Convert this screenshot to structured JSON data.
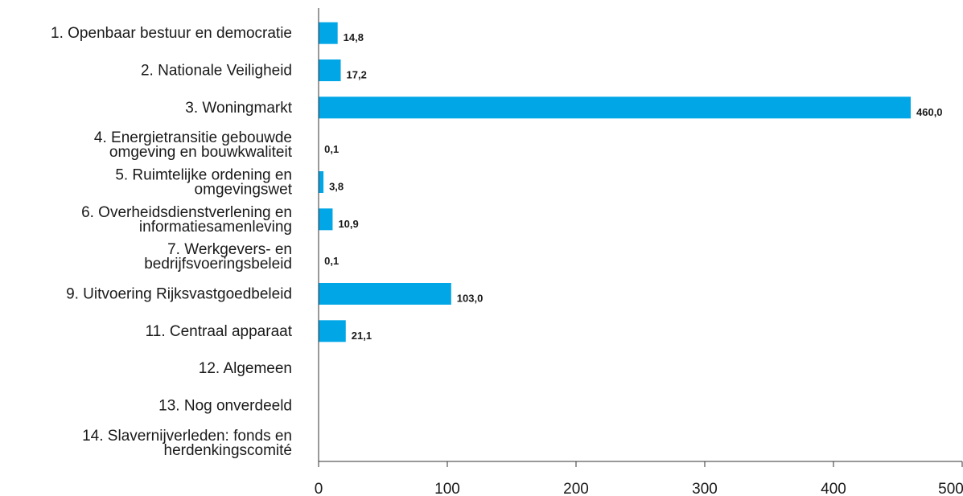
{
  "chart_data": {
    "type": "bar",
    "orientation": "horizontal",
    "title": "",
    "xlabel": "",
    "ylabel": "",
    "categories": [
      [
        "1. Openbaar bestuur en democratie"
      ],
      [
        "2. Nationale Veiligheid"
      ],
      [
        "3. Woningmarkt"
      ],
      [
        "4. Energietransitie gebouwde",
        "omgeving en bouwkwaliteit"
      ],
      [
        "5. Ruimtelijke ordening en",
        "omgevingswet"
      ],
      [
        "6. Overheidsdienstverlening en",
        "informatiesamenleving"
      ],
      [
        "7. Werkgevers- en",
        "bedrijfsvoeringsbeleid"
      ],
      [
        "9. Uitvoering Rijksvastgoedbeleid"
      ],
      [
        "11. Centraal apparaat"
      ],
      [
        "12. Algemeen"
      ],
      [
        "13. Nog onverdeeld"
      ],
      [
        "14. Slavernijverleden: fonds en",
        "herdenkingscomité"
      ]
    ],
    "values": [
      14.8,
      17.2,
      460.0,
      0.1,
      3.8,
      10.9,
      0.1,
      103.0,
      21.1,
      null,
      null,
      null
    ],
    "value_labels": [
      "14,8",
      "17,2",
      "460,0",
      "0,1",
      "3,8",
      "10,9",
      "0,1",
      "103,0",
      "21,1",
      "",
      "",
      ""
    ],
    "xlim": [
      0,
      500
    ],
    "xticks": [
      0,
      100,
      200,
      300,
      400,
      500
    ],
    "grid": false,
    "legend": "none",
    "bar_color": "#00a6e6"
  }
}
